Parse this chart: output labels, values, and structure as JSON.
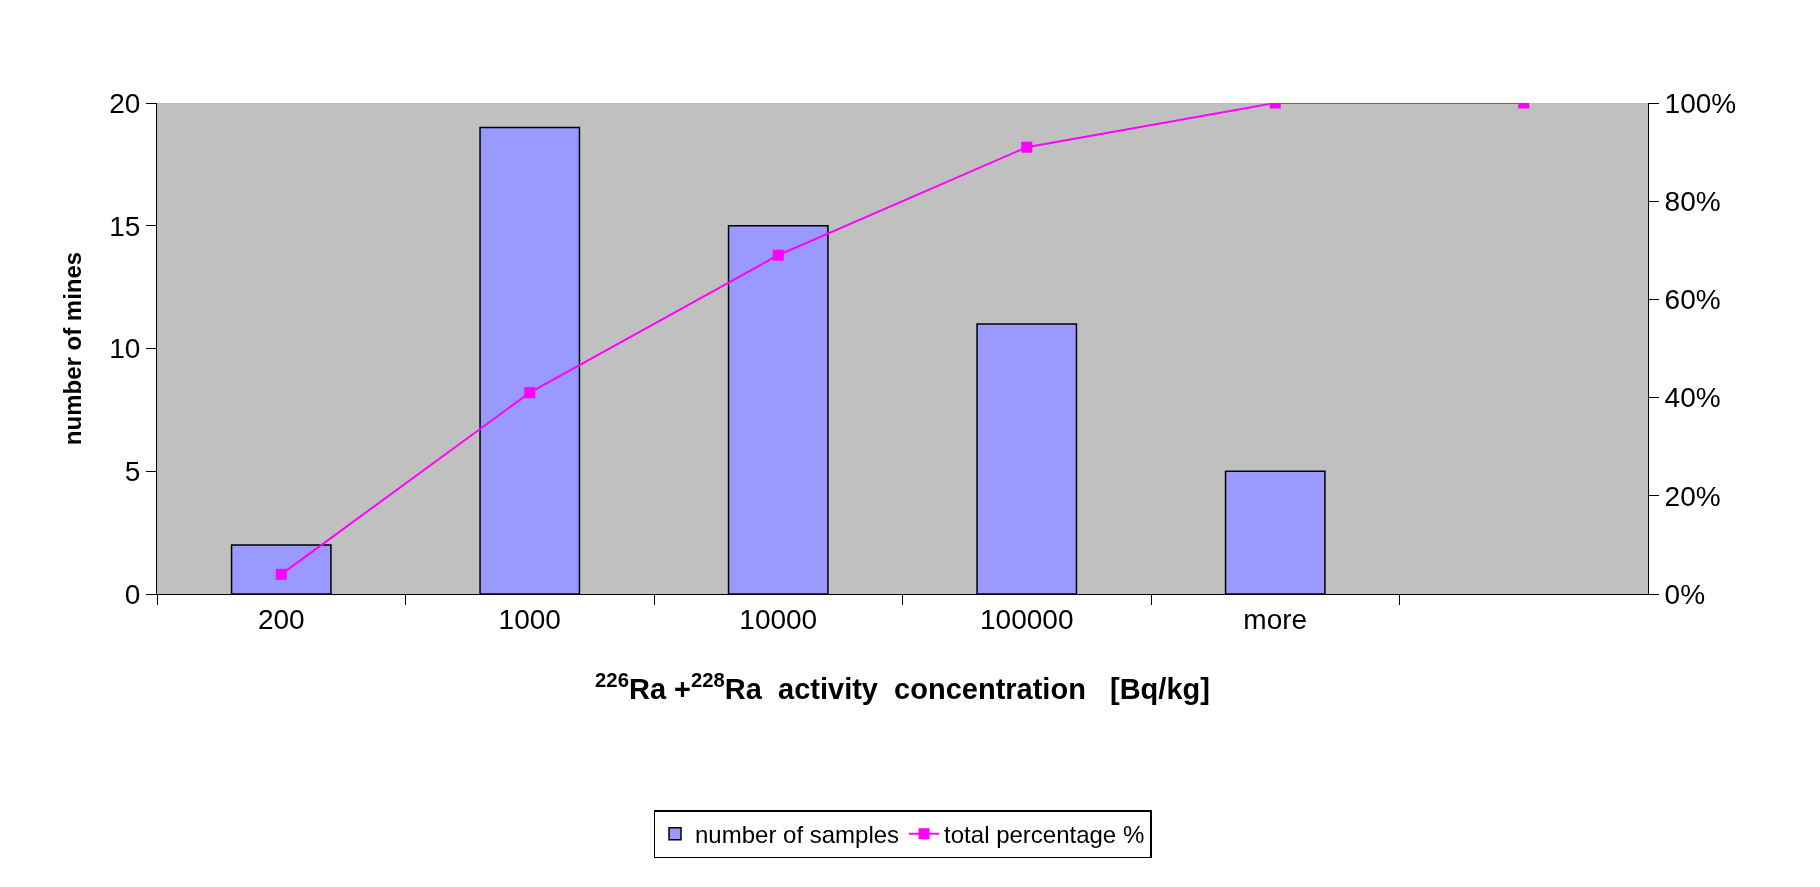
{
  "chart_data": {
    "type": "bar",
    "xlabel": "$^{226}$Ra +$^{228}$Ra  activity  concentration   [Bq/kg]",
    "ylabel": "number of mines",
    "categories": [
      "200",
      "1000",
      "10000",
      "100000",
      "more",
      null
    ],
    "series": [
      {
        "name": "number of samples",
        "color": "#9999ff",
        "values": [
          2,
          19,
          15,
          11,
          5,
          null
        ]
      },
      {
        "name": "total percentage %",
        "type": "line",
        "axis": "y2",
        "color": "#ff00ff",
        "marker": "square",
        "values": [
          4,
          41,
          69,
          91,
          100,
          100
        ]
      }
    ],
    "ylim": [
      0,
      20
    ],
    "yticks": [
      0,
      5,
      10,
      15,
      20
    ],
    "y2lim": [
      0,
      100
    ],
    "y2ticks": [
      {
        "value": 0,
        "label": "0%"
      },
      {
        "value": 20,
        "label": "20%"
      },
      {
        "value": 40,
        "label": "40%"
      },
      {
        "value": 60,
        "label": "60%"
      },
      {
        "value": 80,
        "label": "80%"
      },
      {
        "value": 100,
        "label": "100%"
      }
    ],
    "grid": false,
    "legend": "bottom"
  }
}
